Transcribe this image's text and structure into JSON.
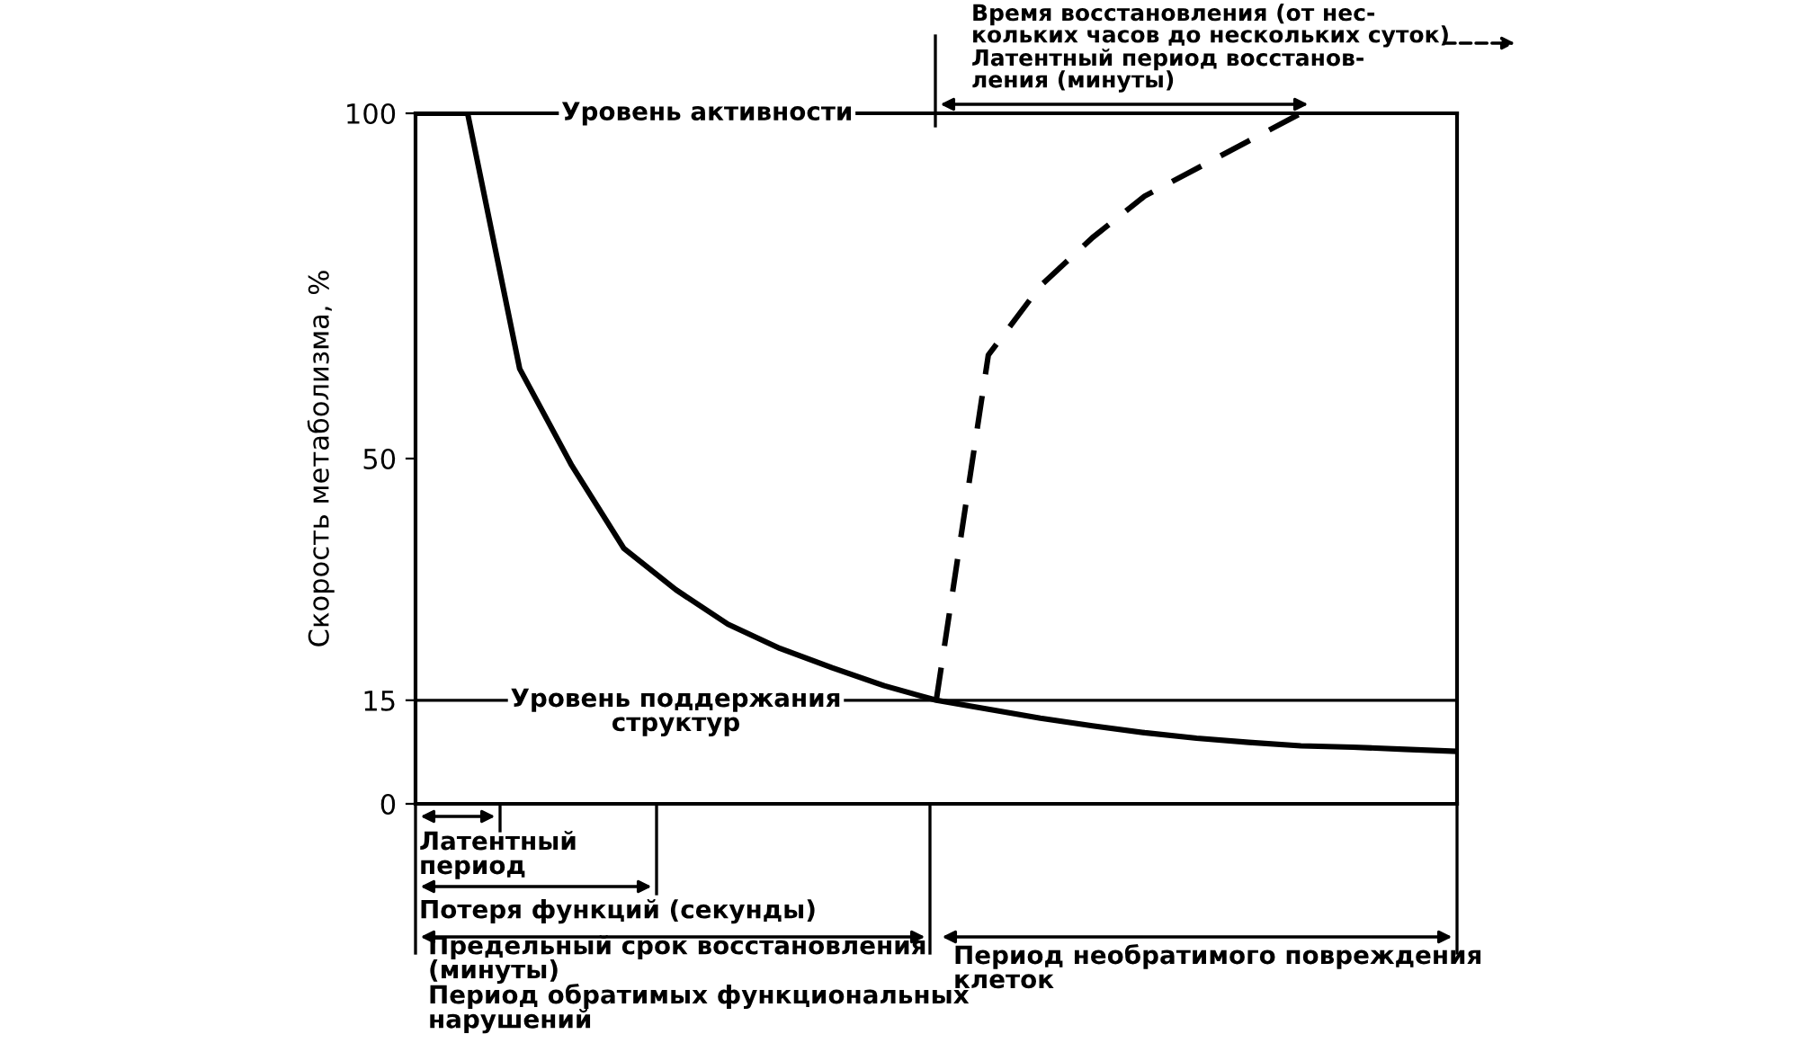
{
  "chart_data": {
    "type": "line",
    "ylabel": "Скорость метаболизма, %",
    "categories": [
      null,
      null,
      null,
      null,
      null,
      null,
      null,
      null,
      null,
      null,
      null,
      null,
      null,
      null,
      null,
      null,
      null,
      null,
      null,
      null,
      null
    ],
    "series": [
      {
        "color": "#000000",
        "line_style": "solid",
        "values": [
          100,
          100,
          63,
          49,
          37,
          31,
          26,
          22.5,
          19.7,
          17.1,
          15,
          13.7,
          12.4,
          11.3,
          10.3,
          9.5,
          8.9,
          8.4,
          8.2,
          7.9,
          7.6
        ]
      },
      {
        "color": "#000000",
        "line_style": "dashed",
        "values": [
          null,
          null,
          null,
          null,
          null,
          null,
          null,
          null,
          null,
          null,
          15,
          65,
          75,
          82,
          88,
          92,
          96,
          100,
          null,
          null,
          null
        ]
      }
    ],
    "ylim": [
      0,
      100
    ],
    "yticks": [
      0,
      15,
      50,
      100
    ],
    "tick_labels": "y",
    "grid": false,
    "marker": "none",
    "ref_lines": [
      {
        "axis": "y",
        "value": 100,
        "label": "Уровень активности"
      },
      {
        "axis": "y",
        "value": 15,
        "label": "Уровень поддержания\nструктур"
      },
      {
        "axis": "y",
        "value": 0,
        "label": null
      }
    ],
    "annotations": [
      "Время восстановления (от нес-\nкольких часов до нескольких суток)",
      "Латентный период восстанов-\nления (минуты)",
      "Латентный\nпериод",
      "Потеря функций (секунды)",
      "Предельный срок восстановления\n(минуты)\nПериод обратимых функциональных\nнарушений",
      "Период необратимого повреждения\nклеток"
    ]
  }
}
